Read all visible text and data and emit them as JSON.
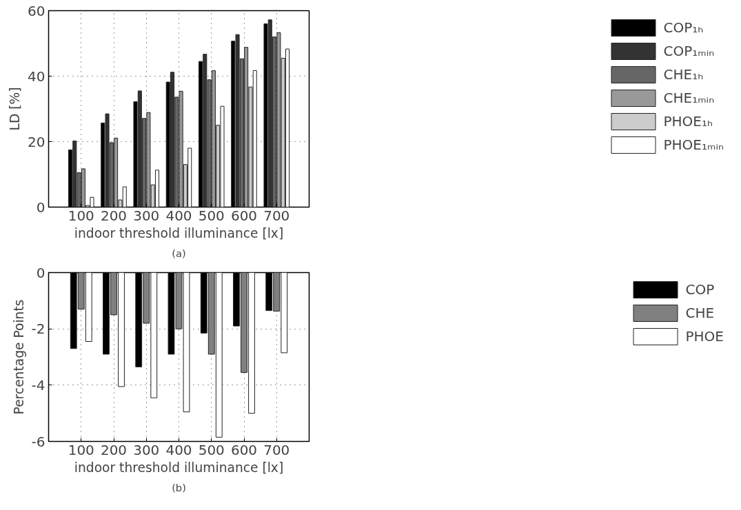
{
  "chart_data": [
    {
      "type": "bar",
      "xlabel": "indoor threshold illuminance [lx]",
      "ylabel": "LD [%]",
      "annotations": [
        "(a)"
      ],
      "x": [
        100,
        200,
        300,
        400,
        500,
        600,
        700
      ],
      "xlim": [
        0,
        800
      ],
      "xticks": [
        100,
        200,
        300,
        400,
        500,
        600,
        700
      ],
      "ylim": [
        0,
        60
      ],
      "yticks": [
        0,
        20,
        40,
        60
      ],
      "grid": true,
      "legend": "right",
      "series": [
        {
          "name": "COP₁ₕ",
          "color": "#000000",
          "values": [
            17.5,
            25.7,
            32.2,
            38.2,
            44.5,
            50.7,
            56
          ]
        },
        {
          "name": "COP₁ₘᵢₙ",
          "color": "#333333",
          "values": [
            20.2,
            28.5,
            35.5,
            41.2,
            46.7,
            52.7,
            57.2
          ]
        },
        {
          "name": "CHE₁ₕ",
          "color": "#666666",
          "values": [
            10.5,
            19.7,
            27.1,
            33.6,
            38.9,
            45.3,
            52
          ]
        },
        {
          "name": "CHE₁ₘᵢₙ",
          "color": "#999999",
          "values": [
            11.7,
            21.1,
            28.9,
            35.4,
            41.7,
            48.8,
            53.3
          ]
        },
        {
          "name": "PHOE₁ₕ",
          "color": "#cccccc",
          "values": [
            0.5,
            2.2,
            6.8,
            13,
            25,
            36.7,
            45.5
          ]
        },
        {
          "name": "PHOE₁ₘᵢₙ",
          "color": "#ffffff",
          "values": [
            3,
            6.2,
            11.3,
            18,
            30.8,
            41.7,
            48.3
          ]
        }
      ]
    },
    {
      "type": "bar",
      "xlabel": "indoor threshold illuminance [lx]",
      "ylabel": "Percentage Points",
      "annotations": [
        "(b)"
      ],
      "x": [
        100,
        200,
        300,
        400,
        500,
        600,
        700
      ],
      "xlim": [
        0,
        800
      ],
      "xticks": [
        100,
        200,
        300,
        400,
        500,
        600,
        700
      ],
      "ylim": [
        -6,
        0
      ],
      "yticks": [
        -6,
        -4,
        -2,
        0
      ],
      "grid": true,
      "legend": "right",
      "series": [
        {
          "name": "COP",
          "color": "#000000",
          "values": [
            -2.7,
            -2.9,
            -3.35,
            -2.9,
            -2.15,
            -1.9,
            -1.35
          ]
        },
        {
          "name": "CHE",
          "color": "#808080",
          "values": [
            -1.3,
            -1.5,
            -1.8,
            -2.0,
            -2.9,
            -3.55,
            -1.37
          ]
        },
        {
          "name": "PHOE",
          "color": "#ffffff",
          "values": [
            -2.45,
            -4.05,
            -4.45,
            -4.95,
            -5.85,
            -5.0,
            -2.85
          ]
        }
      ]
    }
  ]
}
